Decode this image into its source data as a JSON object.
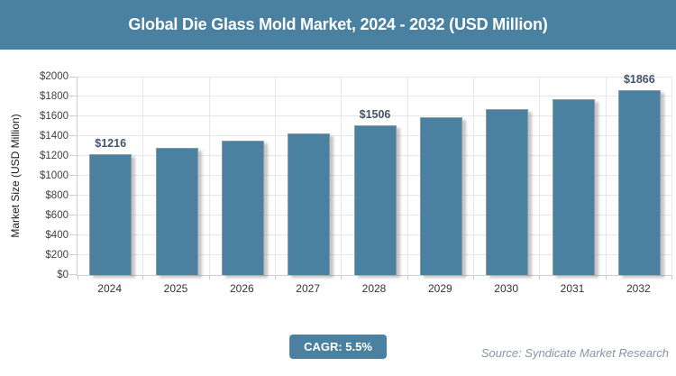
{
  "header": {
    "title": "Global Die Glass Mold Market, 2024 - 2032 (USD Million)"
  },
  "chart_data": {
    "type": "bar",
    "title": "Global Die Glass Mold Market, 2024 - 2032 (USD Million)",
    "categories": [
      "2024",
      "2025",
      "2026",
      "2027",
      "2028",
      "2029",
      "2030",
      "2031",
      "2032"
    ],
    "values": [
      1216,
      1283,
      1353,
      1428,
      1506,
      1589,
      1677,
      1769,
      1866
    ],
    "data_labels": [
      "$1216",
      null,
      null,
      null,
      "$1506",
      null,
      null,
      null,
      "$1866"
    ],
    "xlabel": "",
    "ylabel": "Market Size (USD Million)",
    "ylim": [
      0,
      2000
    ],
    "ytick_step": 200,
    "ytick_labels": [
      "$0",
      "$200",
      "$400",
      "$600",
      "$800",
      "$1000",
      "$1200",
      "$1400",
      "$1600",
      "$1800",
      "$2000"
    ],
    "grid": true,
    "legend": false,
    "bar_color": "#4A80A0",
    "data_label_color": "#44546A"
  },
  "footer": {
    "cagr_label": "CAGR: 5.5%",
    "source": "Source: Syndicate Market Research"
  },
  "colors": {
    "accent_teal": "#4A80A0",
    "gridline": "#e4e8eb",
    "axis_line": "#c9ced3",
    "axis_text": "#404040",
    "source_text": "#8795A3"
  }
}
